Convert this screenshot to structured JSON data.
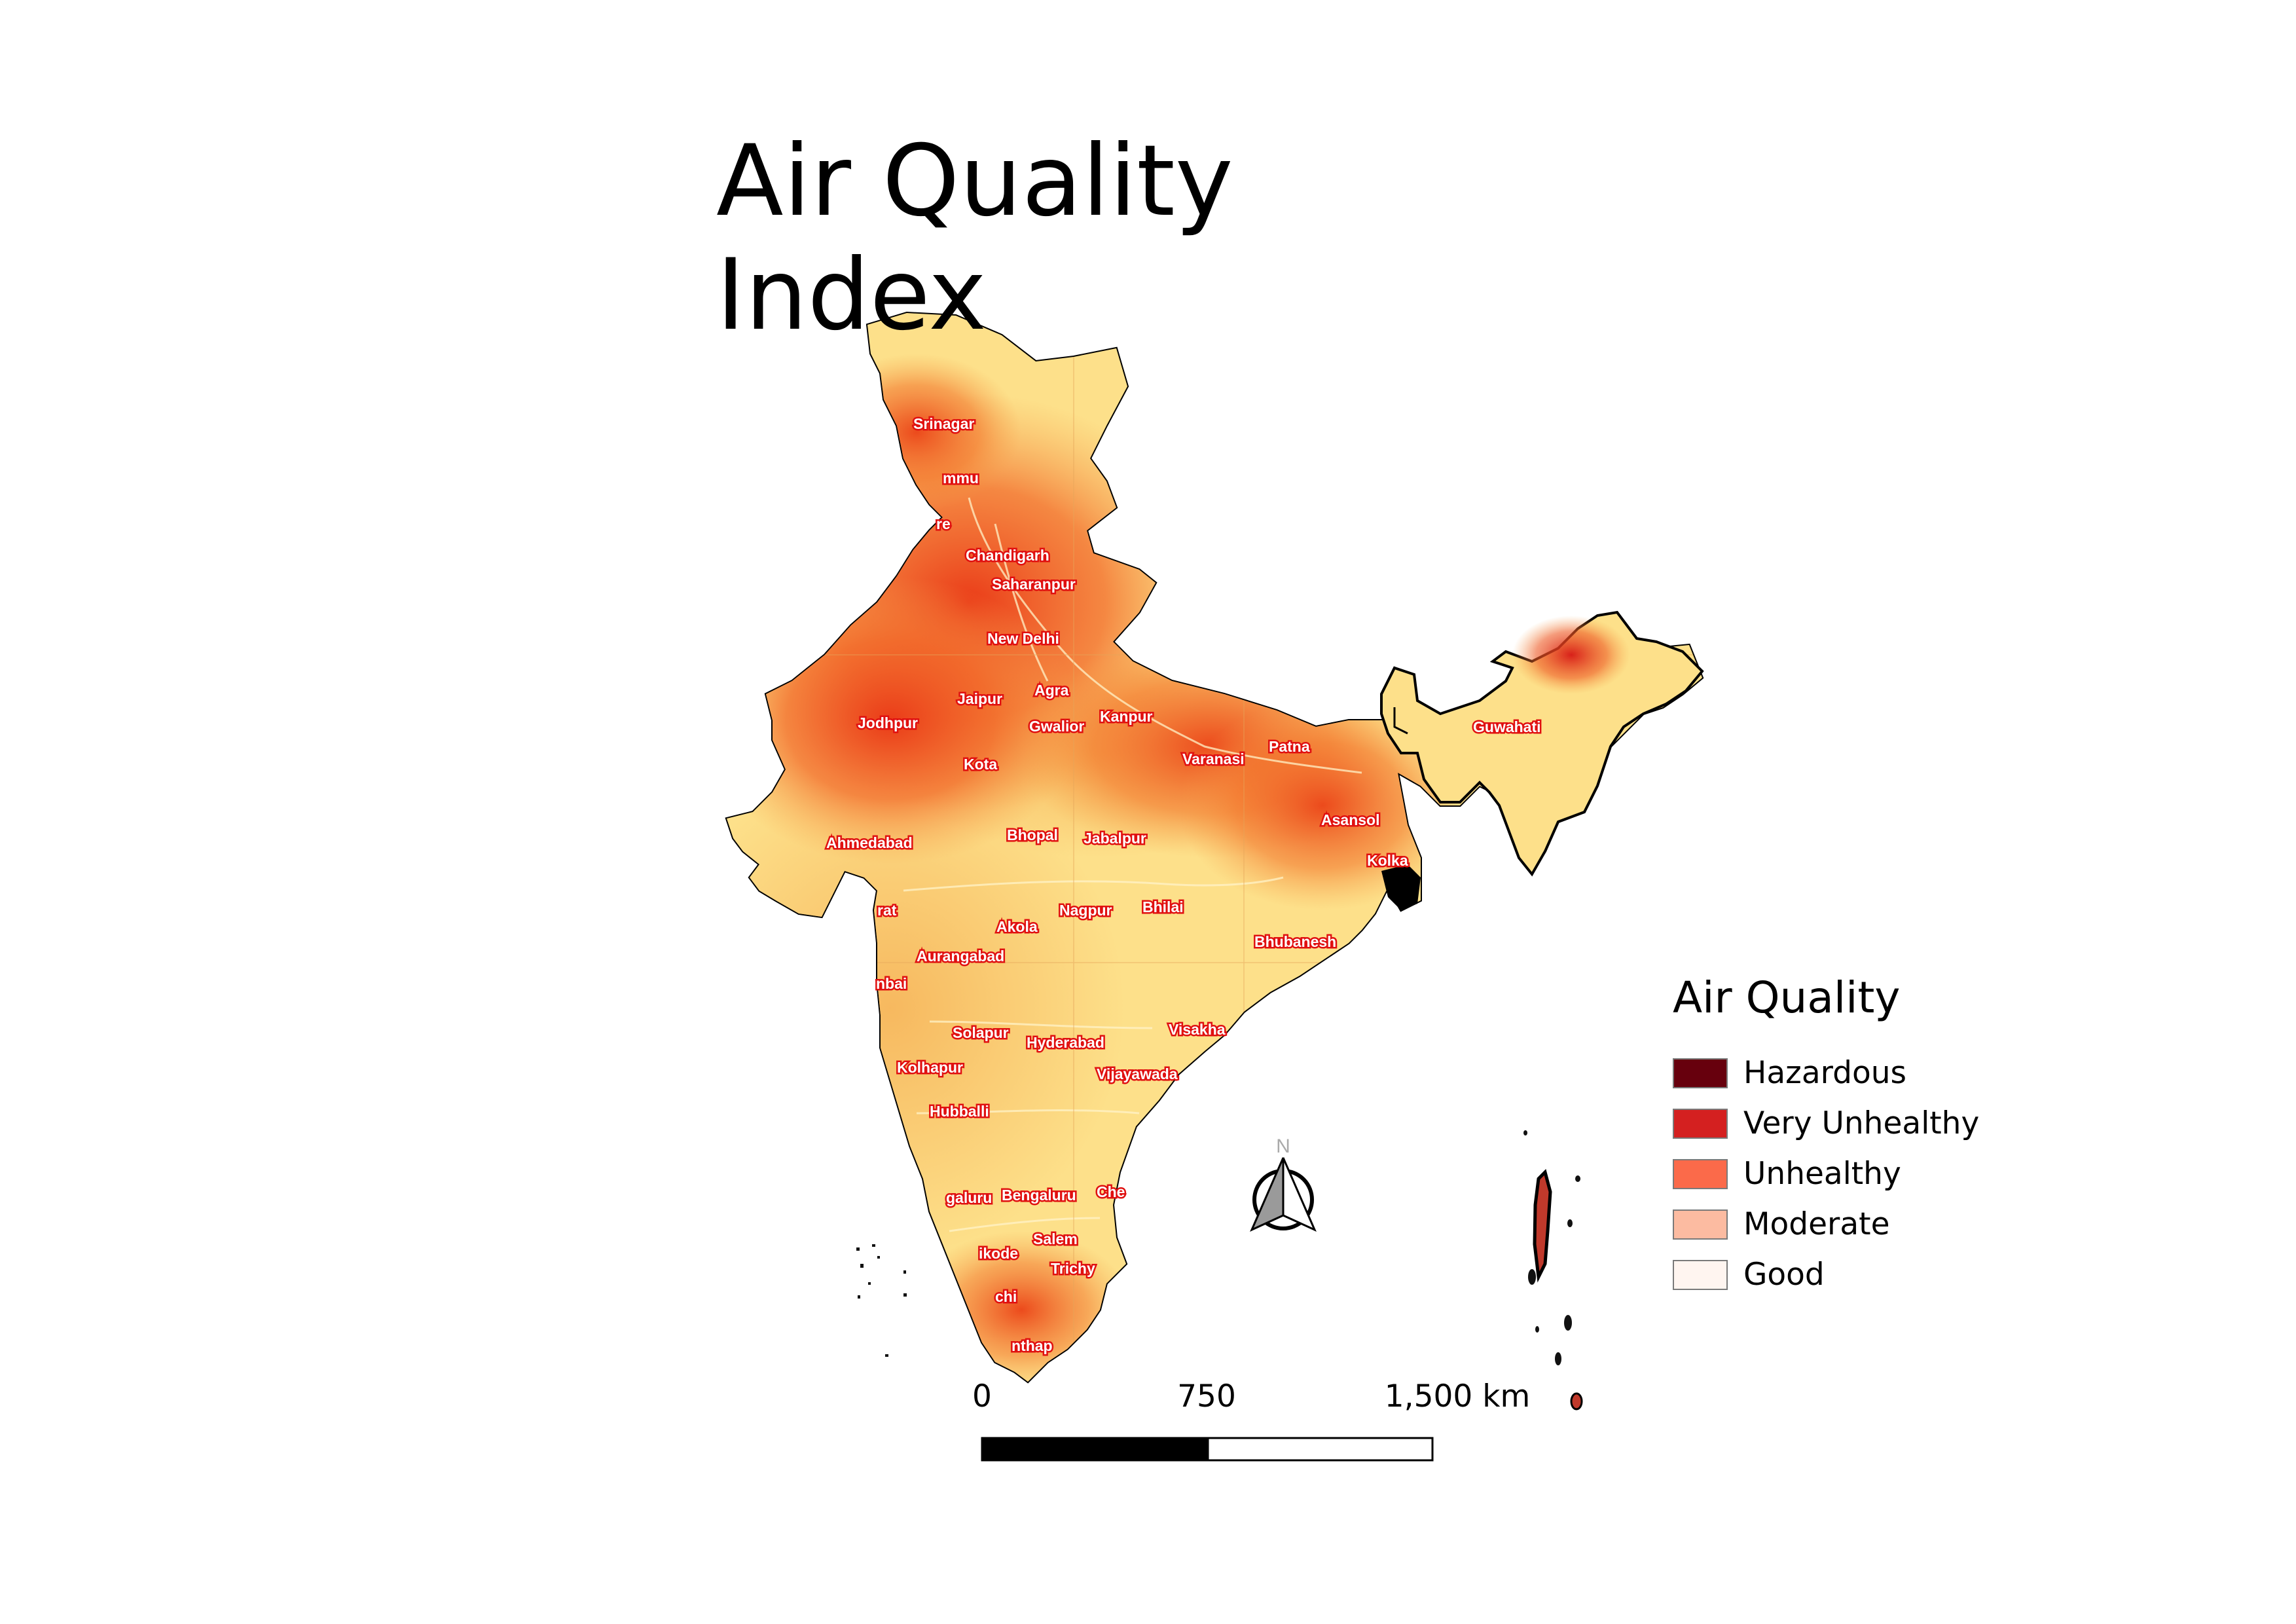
{
  "title": "Air Quality Index",
  "legend": {
    "title": "Air Quality",
    "classes": [
      {
        "label": "Hazardous",
        "color": "#67000d"
      },
      {
        "label": "Very Unhealthy",
        "color": "#d42020"
      },
      {
        "label": "Unhealthy",
        "color": "#fb6a4a"
      },
      {
        "label": "Moderate",
        "color": "#fcbba1"
      },
      {
        "label": "Good",
        "color": "#fff5f0"
      }
    ]
  },
  "scale_bar": {
    "labels": [
      "0",
      "750",
      "1,500 km"
    ]
  },
  "north_arrow": {
    "label": "N"
  },
  "cities": [
    "Srinagar",
    "mmu",
    "re",
    "Chandigarh",
    "Saharanpur",
    "New Delhi",
    "Agra",
    "Jaipur",
    "Jodhpur",
    "Gwalior",
    "Kanpur",
    "Kota",
    "Varanasi",
    "Patna",
    "Guwahati",
    "Asansol",
    "Kolka",
    "Ahmedabad",
    "Bhopal",
    "Jabalpur",
    "rat",
    "Akola",
    "Nagpur",
    "Bhilai",
    "Bhubanesh",
    "Aurangabad",
    "nbai",
    "Solapur",
    "Hyderabad",
    "Visakha",
    "Kolhapur",
    "Vijayawada",
    "Hubballi",
    "galuru",
    "Bengaluru",
    "Che",
    "Salem",
    "ikode",
    "Trichy",
    "chi",
    "nthap"
  ]
}
